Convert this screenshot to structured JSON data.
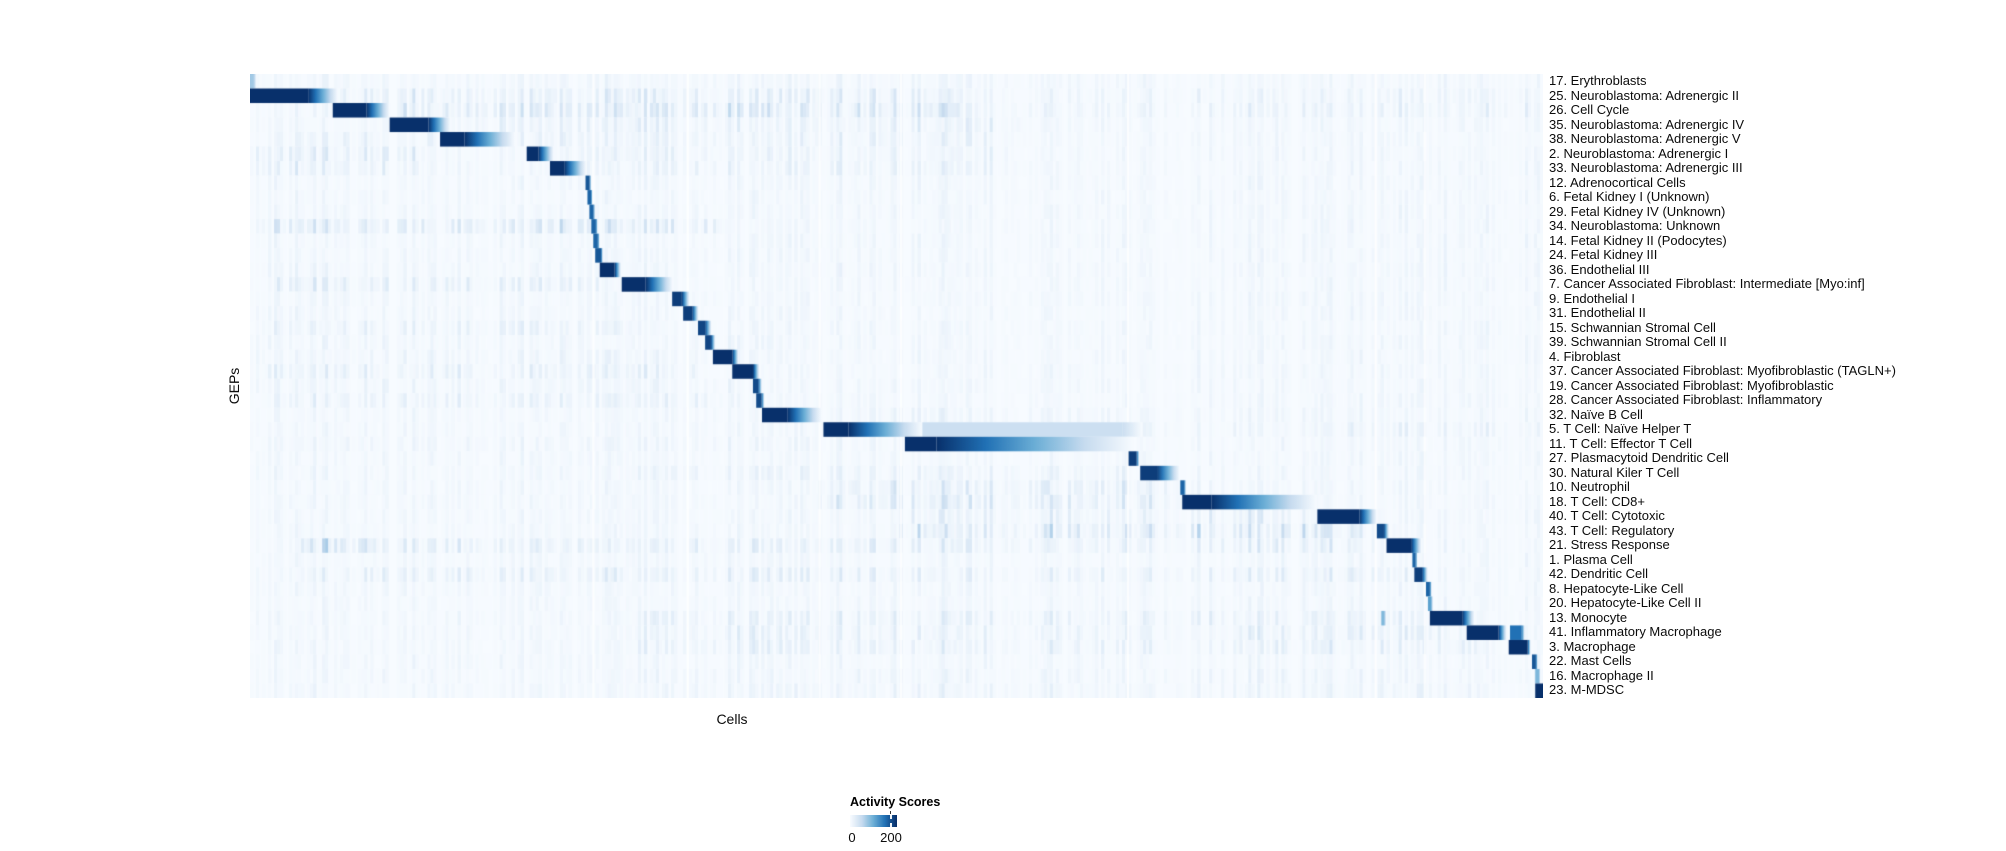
{
  "chart_data": {
    "type": "heatmap",
    "xlabel": "Cells",
    "ylabel": "GEPs",
    "legend": {
      "title": "Activity Scores",
      "min_label": "0",
      "max_label": "200",
      "tick_frac": 0.872
    },
    "colormap": "Blues",
    "colormap_stops": [
      "#f7fbff",
      "#c6dbef",
      "#6baed6",
      "#2171b5",
      "#08306b"
    ],
    "value_range": [
      0,
      200
    ],
    "noise_seed": 20240601,
    "base_noise": 0.05,
    "column_count": 430,
    "gaps": [
      0.2655,
      0.3385,
      0.4405,
      0.5035,
      0.679,
      0.8705,
      0.9085
    ],
    "rows": [
      {
        "label": "17. Erythroblasts",
        "blocks": [
          {
            "s": 0.0,
            "d": 0.003,
            "e": 0.005,
            "v": 0.35
          }
        ],
        "noise": [
          [
            0.0,
            0.7,
            0.06
          ]
        ]
      },
      {
        "label": "25. Neuroblastoma: Adrenergic II",
        "blocks": [
          {
            "s": 0.0,
            "d": 0.045,
            "e": 0.068,
            "v": 1.0
          }
        ],
        "noise": [
          [
            0.07,
            0.55,
            0.14
          ],
          [
            0.55,
            0.99,
            0.08
          ]
        ]
      },
      {
        "label": "26. Cell Cycle",
        "blocks": [
          {
            "s": 0.064,
            "d": 0.09,
            "e": 0.108,
            "v": 1.0
          }
        ],
        "noise": [
          [
            0.1,
            0.55,
            0.2
          ],
          [
            0.55,
            0.99,
            0.09
          ]
        ]
      },
      {
        "label": "35. Neuroblastoma: Adrenergic IV",
        "blocks": [
          {
            "s": 0.108,
            "d": 0.138,
            "e": 0.155,
            "v": 1.0
          }
        ],
        "noise": [
          [
            0.16,
            0.6,
            0.12
          ]
        ]
      },
      {
        "label": "38. Neuroblastoma: Adrenergic V",
        "blocks": [
          {
            "s": 0.147,
            "d": 0.166,
            "e": 0.205,
            "v": 1.0
          }
        ],
        "noise": [
          [
            0.02,
            0.6,
            0.1
          ]
        ]
      },
      {
        "label": "2. Neuroblastoma: Adrenergic I",
        "blocks": [
          {
            "s": 0.214,
            "d": 0.223,
            "e": 0.235,
            "v": 1.0
          }
        ],
        "noise": [
          [
            0.0,
            0.13,
            0.14
          ],
          [
            0.24,
            0.6,
            0.1
          ]
        ]
      },
      {
        "label": "33. Neuroblastoma: Adrenergic III",
        "blocks": [
          {
            "s": 0.232,
            "d": 0.243,
            "e": 0.26,
            "v": 1.0
          }
        ],
        "noise": [
          [
            0.0,
            0.13,
            0.12
          ],
          [
            0.26,
            0.6,
            0.09
          ]
        ]
      },
      {
        "label": "12. Adrenocortical Cells",
        "blocks": [
          {
            "s": 0.2595,
            "d": 0.2625,
            "e": 0.264,
            "v": 0.85
          }
        ],
        "noise": [
          [
            0.0,
            0.5,
            0.05
          ]
        ]
      },
      {
        "label": "6. Fetal Kidney I (Unknown)",
        "blocks": [
          {
            "s": 0.261,
            "d": 0.2638,
            "e": 0.265,
            "v": 0.8
          }
        ],
        "noise": [
          [
            0.0,
            0.5,
            0.05
          ]
        ]
      },
      {
        "label": "29. Fetal Kidney IV (Unknown)",
        "blocks": [
          {
            "s": 0.2625,
            "d": 0.2655,
            "e": 0.267,
            "v": 0.8
          }
        ],
        "noise": [
          [
            0.0,
            0.5,
            0.05
          ]
        ]
      },
      {
        "label": "34. Neuroblastoma: Unknown",
        "blocks": [
          {
            "s": 0.264,
            "d": 0.2675,
            "e": 0.269,
            "v": 0.8
          }
        ],
        "noise": [
          [
            0.005,
            0.37,
            0.2
          ]
        ]
      },
      {
        "label": "14. Fetal Kidney II (Podocytes)",
        "blocks": [
          {
            "s": 0.2655,
            "d": 0.269,
            "e": 0.2705,
            "v": 0.8
          }
        ],
        "noise": [
          [
            0.0,
            0.5,
            0.05
          ]
        ]
      },
      {
        "label": "24. Fetal Kidney III",
        "blocks": [
          {
            "s": 0.267,
            "d": 0.2715,
            "e": 0.273,
            "v": 0.85
          }
        ],
        "noise": [
          [
            0.0,
            0.5,
            0.05
          ]
        ]
      },
      {
        "label": "36. Endothelial III",
        "blocks": [
          {
            "s": 0.2705,
            "d": 0.282,
            "e": 0.287,
            "v": 1.0
          }
        ],
        "noise": [
          [
            0.0,
            0.5,
            0.06
          ]
        ]
      },
      {
        "label": "7. Cancer Associated Fibroblast: Intermediate [Myo:inf]",
        "blocks": [
          {
            "s": 0.2875,
            "d": 0.306,
            "e": 0.327,
            "v": 1.0
          }
        ],
        "noise": [
          [
            0.02,
            0.27,
            0.13
          ]
        ]
      },
      {
        "label": "9. Endothelial I",
        "blocks": [
          {
            "s": 0.3265,
            "d": 0.334,
            "e": 0.34,
            "v": 0.95
          }
        ],
        "noise": [
          [
            0.0,
            0.5,
            0.05
          ]
        ]
      },
      {
        "label": "31. Endothelial II",
        "blocks": [
          {
            "s": 0.335,
            "d": 0.342,
            "e": 0.347,
            "v": 0.95
          }
        ],
        "noise": [
          [
            0.0,
            0.5,
            0.05
          ]
        ]
      },
      {
        "label": "15. Schwannian Stromal Cell",
        "blocks": [
          {
            "s": 0.3465,
            "d": 0.352,
            "e": 0.357,
            "v": 0.92
          }
        ],
        "noise": [
          [
            0.01,
            0.3,
            0.1
          ]
        ]
      },
      {
        "label": "39. Schwannian Stromal Cell II",
        "blocks": [
          {
            "s": 0.352,
            "d": 0.3565,
            "e": 0.36,
            "v": 0.92
          }
        ],
        "noise": [
          [
            0.0,
            0.4,
            0.06
          ]
        ]
      },
      {
        "label": "4. Fibroblast",
        "blocks": [
          {
            "s": 0.358,
            "d": 0.373,
            "e": 0.378,
            "v": 1.0
          }
        ],
        "noise": [
          [
            0.0,
            0.4,
            0.07
          ]
        ]
      },
      {
        "label": "37. Cancer Associated Fibroblast: Myofibroblastic (TAGLN+)",
        "blocks": [
          {
            "s": 0.373,
            "d": 0.389,
            "e": 0.394,
            "v": 1.0
          }
        ],
        "noise": [
          [
            0.01,
            0.35,
            0.12
          ]
        ]
      },
      {
        "label": "19. Cancer Associated Fibroblast: Myofibroblastic",
        "blocks": [
          {
            "s": 0.389,
            "d": 0.393,
            "e": 0.396,
            "v": 0.9
          }
        ],
        "noise": [
          [
            0.0,
            0.38,
            0.07
          ]
        ]
      },
      {
        "label": "28. Cancer Associated Fibroblast: Inflammatory",
        "blocks": [
          {
            "s": 0.3915,
            "d": 0.3955,
            "e": 0.398,
            "v": 0.9
          }
        ],
        "noise": [
          [
            0.01,
            0.38,
            0.1
          ]
        ]
      },
      {
        "label": "32. Naïve B Cell",
        "blocks": [
          {
            "s": 0.396,
            "d": 0.4155,
            "e": 0.442,
            "v": 1.0
          }
        ],
        "noise": [
          [
            0.45,
            0.75,
            0.08
          ]
        ]
      },
      {
        "label": "5. T Cell: Naïve Helper T",
        "blocks": [
          {
            "s": 0.4435,
            "d": 0.463,
            "e": 0.52,
            "v": 1.0
          },
          {
            "s": 0.52,
            "d": 0.675,
            "e": 0.69,
            "v": 0.22
          }
        ],
        "noise": [
          [
            0.69,
            1.0,
            0.08
          ]
        ]
      },
      {
        "label": "11. T Cell: Effector T Cell",
        "blocks": [
          {
            "s": 0.5065,
            "d": 0.531,
            "e": 0.683,
            "v": 1.0
          }
        ],
        "noise": [
          [
            0.0,
            0.44,
            0.07
          ]
        ]
      },
      {
        "label": "27. Plasmacytoid Dendritic Cell",
        "blocks": [
          {
            "s": 0.6795,
            "d": 0.6855,
            "e": 0.688,
            "v": 0.95
          }
        ],
        "noise": [
          [
            0.0,
            0.6,
            0.05
          ]
        ]
      },
      {
        "label": "30. Natural Kiler T Cell",
        "blocks": [
          {
            "s": 0.6885,
            "d": 0.7015,
            "e": 0.719,
            "v": 0.95
          }
        ],
        "noise": [
          [
            0.3,
            0.68,
            0.1
          ]
        ]
      },
      {
        "label": "10. Neutrophil",
        "blocks": [
          {
            "s": 0.7195,
            "d": 0.7225,
            "e": 0.724,
            "v": 0.8
          }
        ],
        "noise": [
          [
            0.44,
            0.72,
            0.16
          ]
        ]
      },
      {
        "label": "18. T Cell: CD8+",
        "blocks": [
          {
            "s": 0.721,
            "d": 0.7435,
            "e": 0.825,
            "v": 1.0
          }
        ],
        "noise": [
          [
            0.44,
            0.72,
            0.18
          ]
        ]
      },
      {
        "label": "40. T Cell: Cytotoxic",
        "blocks": [
          {
            "s": 0.8255,
            "d": 0.858,
            "e": 0.8715,
            "v": 1.0
          }
        ],
        "noise": [
          [
            0.5,
            0.82,
            0.13
          ]
        ]
      },
      {
        "label": "43. T Cell: Regulatory",
        "blocks": [
          {
            "s": 0.8715,
            "d": 0.877,
            "e": 0.881,
            "v": 0.9
          }
        ],
        "noise": [
          [
            0.5,
            0.87,
            0.22
          ]
        ]
      },
      {
        "label": "21. Stress Response",
        "blocks": [
          {
            "s": 0.879,
            "d": 0.898,
            "e": 0.906,
            "v": 1.0
          }
        ],
        "noise": [
          [
            0.04,
            0.1,
            0.3
          ],
          [
            0.1,
            0.87,
            0.13
          ]
        ]
      },
      {
        "label": "1. Plasma Cell",
        "blocks": [
          {
            "s": 0.899,
            "d": 0.9015,
            "e": 0.903,
            "v": 0.8
          }
        ],
        "noise": [
          [
            0.0,
            0.6,
            0.05
          ]
        ]
      },
      {
        "label": "42. Dendritic Cell",
        "blocks": [
          {
            "s": 0.9005,
            "d": 0.9065,
            "e": 0.911,
            "v": 0.95
          }
        ],
        "noise": [
          [
            0.04,
            0.9,
            0.11
          ]
        ]
      },
      {
        "label": "8. Hepatocyte-Like Cell",
        "blocks": [
          {
            "s": 0.9095,
            "d": 0.9125,
            "e": 0.914,
            "v": 0.8
          }
        ],
        "noise": [
          [
            0.0,
            0.6,
            0.05
          ]
        ]
      },
      {
        "label": "20. Hepatocyte-Like Cell II",
        "blocks": [
          {
            "s": 0.911,
            "d": 0.9135,
            "e": 0.915,
            "v": 0.55
          }
        ],
        "noise": [
          [
            0.0,
            0.6,
            0.05
          ]
        ]
      },
      {
        "label": "13. Monocyte",
        "blocks": [
          {
            "s": 0.9125,
            "d": 0.9375,
            "e": 0.947,
            "v": 1.0
          },
          {
            "s": 0.875,
            "d": 0.877,
            "e": 0.879,
            "v": 0.45
          }
        ],
        "noise": [
          [
            0.3,
            0.9,
            0.11
          ]
        ]
      },
      {
        "label": "41. Inflammatory Macrophage",
        "blocks": [
          {
            "s": 0.941,
            "d": 0.9655,
            "e": 0.972,
            "v": 1.0
          },
          {
            "s": 0.9745,
            "d": 0.9835,
            "e": 0.986,
            "v": 0.75
          }
        ],
        "noise": [
          [
            0.3,
            0.93,
            0.11
          ]
        ]
      },
      {
        "label": "3. Macrophage",
        "blocks": [
          {
            "s": 0.9735,
            "d": 0.988,
            "e": 0.9905,
            "v": 1.0
          }
        ],
        "noise": [
          [
            0.3,
            0.95,
            0.11
          ]
        ]
      },
      {
        "label": "22. Mast Cells",
        "blocks": [
          {
            "s": 0.9915,
            "d": 0.9945,
            "e": 0.996,
            "v": 0.85
          }
        ],
        "noise": [
          [
            0.0,
            0.7,
            0.05
          ]
        ]
      },
      {
        "label": "16. Macrophage II",
        "blocks": [
          {
            "s": 0.994,
            "d": 0.997,
            "e": 0.998,
            "v": 0.45
          }
        ],
        "noise": [
          [
            0.3,
            0.9,
            0.07
          ]
        ]
      },
      {
        "label": "23. M-MDSC",
        "blocks": [
          {
            "s": 0.994,
            "d": 1.0,
            "e": 1.0,
            "v": 1.0
          }
        ],
        "noise": [
          [
            0.3,
            0.95,
            0.08
          ]
        ]
      }
    ]
  }
}
